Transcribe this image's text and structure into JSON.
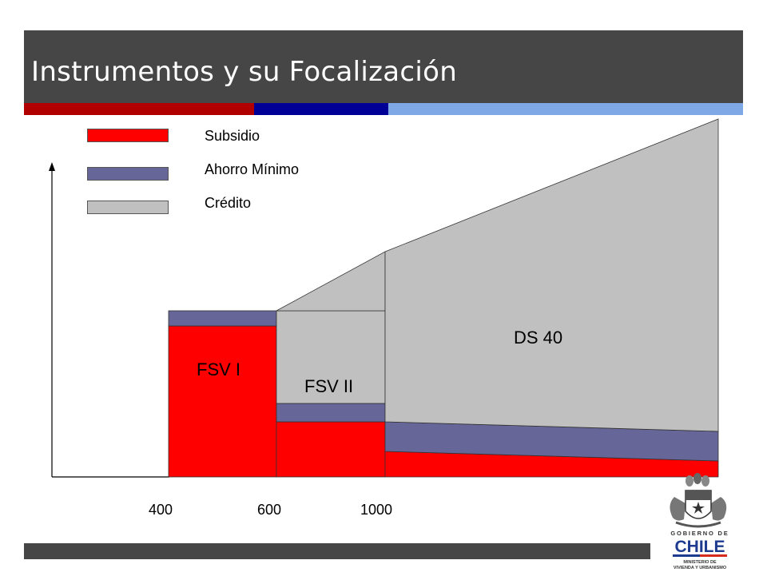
{
  "header": {
    "title": "Instrumentos y su Focalización"
  },
  "legend": {
    "items": [
      {
        "label": "Subsidio",
        "color": "#ff0000"
      },
      {
        "label": "Ahorro Mínimo",
        "color": "#666699"
      },
      {
        "label": "Crédito",
        "color": "#c0c0c0"
      }
    ]
  },
  "diagram": {
    "instruments": [
      {
        "label": "FSV I"
      },
      {
        "label": "FSV II"
      },
      {
        "label": "DS 40"
      }
    ],
    "x_axis_values": [
      "400",
      "600",
      "1000"
    ]
  },
  "logo": {
    "line1": "GOBIERNO DE",
    "line2": "CHILE",
    "line3": "MINISTERIO DE",
    "line4": "VIVIENDA Y URBANISMO"
  }
}
